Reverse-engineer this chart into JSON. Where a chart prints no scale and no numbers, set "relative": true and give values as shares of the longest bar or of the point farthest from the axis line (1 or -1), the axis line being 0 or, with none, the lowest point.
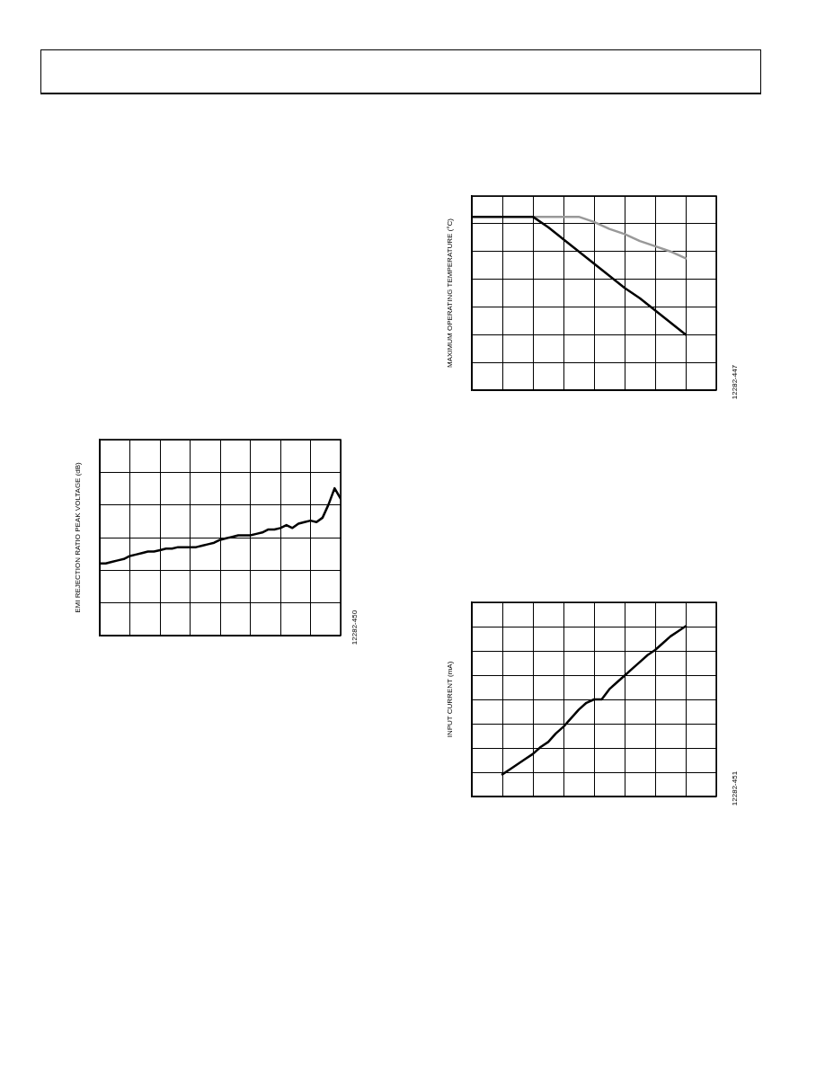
{
  "chart_data": [
    {
      "type": "line",
      "relative": true,
      "ylabel": "EMI REJECTION RATIO PEAK VOLTAGE (dB)",
      "annotations": [
        "12282-450"
      ],
      "grid": true,
      "legend": false,
      "marker": "none",
      "categories": [
        null,
        null,
        null,
        null,
        null,
        null,
        null,
        null,
        null,
        null,
        null,
        null,
        null,
        null,
        null,
        null,
        null,
        null,
        null,
        null,
        null,
        null,
        null,
        null,
        null,
        null,
        null,
        null,
        null,
        null,
        null,
        null,
        null,
        null,
        null,
        null,
        null,
        null,
        null,
        null,
        null
      ],
      "series": [
        {
          "color": "#000000",
          "values": [
            0.49,
            0.49,
            0.5,
            0.51,
            0.52,
            0.54,
            0.55,
            0.56,
            0.57,
            0.57,
            0.58,
            0.59,
            0.59,
            0.6,
            0.6,
            0.6,
            0.6,
            0.61,
            0.62,
            0.63,
            0.65,
            0.66,
            0.67,
            0.68,
            0.68,
            0.68,
            0.69,
            0.7,
            0.72,
            0.72,
            0.73,
            0.75,
            0.73,
            0.76,
            0.77,
            0.78,
            0.77,
            0.8,
            0.89,
            1.0,
            0.93
          ]
        }
      ]
    },
    {
      "type": "line",
      "relative": true,
      "ylabel": "MAXIMUM OPERATING TEMPERATURE (°C)",
      "annotations": [
        "12282-447"
      ],
      "grid": true,
      "legend": false,
      "marker": "none",
      "categories": [
        null,
        null,
        null,
        null,
        null,
        null,
        null,
        null,
        null,
        null,
        null,
        null,
        null,
        null,
        null,
        null,
        null
      ],
      "series": [
        {
          "color": "#999999",
          "values": [
            null,
            null,
            null,
            null,
            1,
            1,
            1,
            1,
            0.97,
            0.93,
            0.9,
            0.86,
            0.83,
            0.8,
            0.76,
            null,
            null
          ]
        },
        {
          "color": "#000000",
          "values": [
            1,
            1,
            1,
            1,
            1,
            0.94,
            0.87,
            0.8,
            0.73,
            0.66,
            0.59,
            0.53,
            0.46,
            0.39,
            0.32,
            null,
            null
          ]
        }
      ]
    },
    {
      "type": "line",
      "relative": true,
      "ylabel": "INPUT CURRENT (mA)",
      "annotations": [
        "12282-451"
      ],
      "grid": true,
      "legend": false,
      "marker": "none",
      "categories": [
        null,
        null,
        null,
        null,
        null,
        null,
        null,
        null,
        null,
        null,
        null,
        null,
        null,
        null,
        null,
        null,
        null,
        null,
        null,
        null,
        null,
        null,
        null,
        null,
        null,
        null,
        null,
        null,
        null,
        null,
        null,
        null,
        null
      ],
      "series": [
        {
          "color": "#000000",
          "values": [
            null,
            null,
            null,
            null,
            0.13,
            0.16,
            0.19,
            0.22,
            0.25,
            0.29,
            0.32,
            0.37,
            0.41,
            0.46,
            0.51,
            0.55,
            0.57,
            0.57,
            0.63,
            0.67,
            0.71,
            0.75,
            0.79,
            0.83,
            0.86,
            0.9,
            0.94,
            0.97,
            1,
            null,
            null,
            null,
            null
          ]
        }
      ]
    }
  ]
}
